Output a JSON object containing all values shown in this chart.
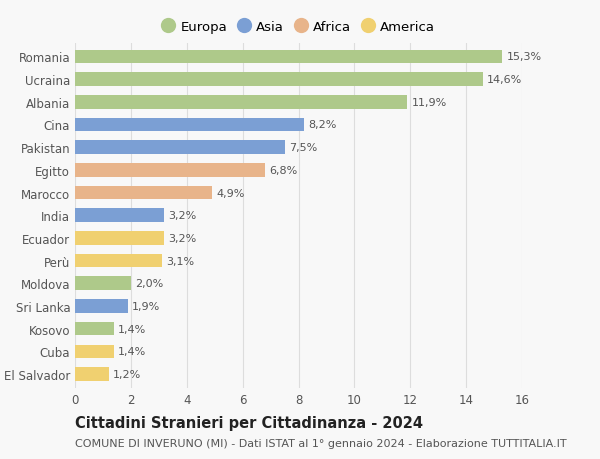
{
  "categories": [
    "Romania",
    "Ucraina",
    "Albania",
    "Cina",
    "Pakistan",
    "Egitto",
    "Marocco",
    "India",
    "Ecuador",
    "Perù",
    "Moldova",
    "Sri Lanka",
    "Kosovo",
    "Cuba",
    "El Salvador"
  ],
  "values": [
    15.3,
    14.6,
    11.9,
    8.2,
    7.5,
    6.8,
    4.9,
    3.2,
    3.2,
    3.1,
    2.0,
    1.9,
    1.4,
    1.4,
    1.2
  ],
  "labels": [
    "15,3%",
    "14,6%",
    "11,9%",
    "8,2%",
    "7,5%",
    "6,8%",
    "4,9%",
    "3,2%",
    "3,2%",
    "3,1%",
    "2,0%",
    "1,9%",
    "1,4%",
    "1,4%",
    "1,2%"
  ],
  "continents": [
    "Europa",
    "Europa",
    "Europa",
    "Asia",
    "Asia",
    "Africa",
    "Africa",
    "Asia",
    "America",
    "America",
    "Europa",
    "Asia",
    "Europa",
    "America",
    "America"
  ],
  "continent_colors": {
    "Europa": "#aec98a",
    "Asia": "#7b9fd4",
    "Africa": "#e8b48a",
    "America": "#f0d070"
  },
  "legend_order": [
    "Europa",
    "Asia",
    "Africa",
    "America"
  ],
  "title": "Cittadini Stranieri per Cittadinanza - 2024",
  "subtitle": "COMUNE DI INVERUNO (MI) - Dati ISTAT al 1° gennaio 2024 - Elaborazione TUTTITALIA.IT",
  "xlim": [
    0,
    16
  ],
  "xticks": [
    0,
    2,
    4,
    6,
    8,
    10,
    12,
    14,
    16
  ],
  "background_color": "#f8f8f8",
  "grid_color": "#dddddd",
  "bar_height": 0.6,
  "title_fontsize": 10.5,
  "subtitle_fontsize": 8,
  "tick_fontsize": 8.5,
  "label_fontsize": 8,
  "legend_fontsize": 9.5
}
